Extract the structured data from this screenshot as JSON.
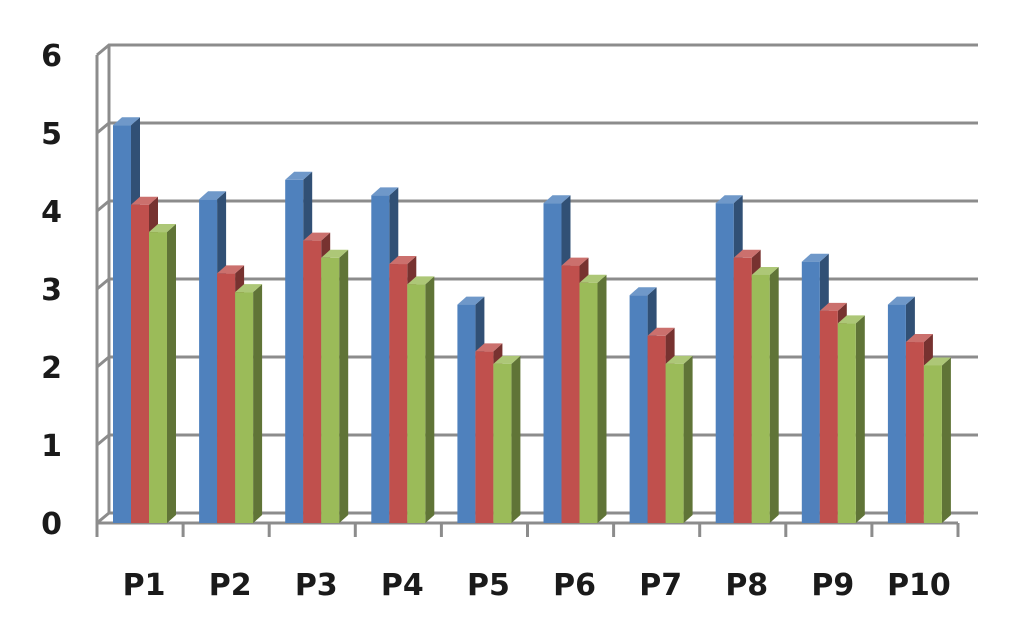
{
  "chart_data": {
    "type": "bar",
    "style": "3d-clustered-column",
    "title": "",
    "xlabel": "",
    "ylabel": "",
    "ylim": [
      0,
      6
    ],
    "yticks": [
      0,
      1,
      2,
      3,
      4,
      5,
      6
    ],
    "grid": true,
    "legend": "none",
    "categories": [
      "P1",
      "P2",
      "P3",
      "P4",
      "P5",
      "P6",
      "P7",
      "P8",
      "P9",
      "P10"
    ],
    "series": [
      {
        "color": "#4F81BD",
        "values": [
          5.1,
          4.15,
          4.4,
          4.2,
          2.8,
          4.1,
          2.92,
          4.1,
          3.35,
          2.8
        ]
      },
      {
        "color": "#C0504D",
        "values": [
          4.08,
          3.2,
          3.62,
          3.32,
          2.2,
          3.3,
          2.4,
          3.4,
          2.72,
          2.32
        ]
      },
      {
        "color": "#9BBB59",
        "values": [
          3.73,
          2.96,
          3.4,
          3.06,
          2.04,
          3.08,
          2.04,
          3.18,
          2.56,
          2.02
        ]
      }
    ]
  }
}
